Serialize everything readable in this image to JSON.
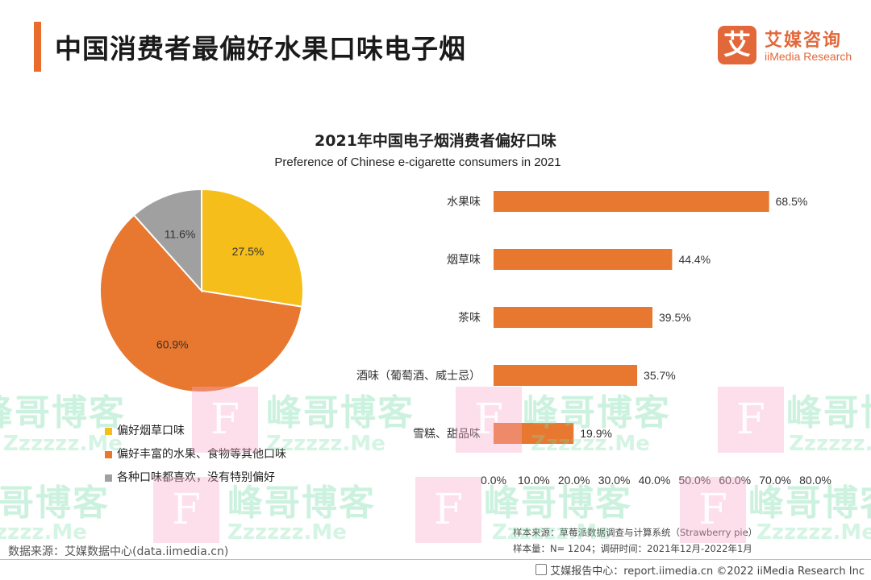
{
  "header": {
    "title": "中国消费者最偏好水果口味电子烟",
    "logo_mark": "艾",
    "logo_cn": "艾媒咨询",
    "logo_en": "iiMedia Research"
  },
  "chart_data": [
    {
      "type": "pie",
      "title": "2021年中国电子烟消费者偏好口味",
      "subtitle": "Preference of Chinese e-cigarette consumers in 2021",
      "slices": [
        {
          "label": "偏好烟草口味",
          "value": 27.5,
          "value_label": "27.5%",
          "color": "#F5BE1A"
        },
        {
          "label": "偏好丰富的水果、食物等其他口味",
          "value": 60.9,
          "value_label": "60.9%",
          "color": "#E8772F"
        },
        {
          "label": "各种口味都喜欢，没有特别偏好",
          "value": 11.6,
          "value_label": "11.6%",
          "color": "#A0A0A0"
        }
      ],
      "legend_position": "bottom"
    },
    {
      "type": "bar",
      "orientation": "horizontal",
      "categories": [
        "水果味",
        "烟草味",
        "茶味",
        "酒味（葡萄酒、威士忌）",
        "雪糕、甜品味"
      ],
      "values": [
        68.5,
        44.4,
        39.5,
        35.7,
        19.9
      ],
      "value_labels": [
        "68.5%",
        "44.4%",
        "39.5%",
        "35.7%",
        "19.9%"
      ],
      "color": "#E8772F",
      "xlim": [
        0,
        80
      ],
      "tick_labels": [
        "0.0%",
        "10.0%",
        "20.0%",
        "30.0%",
        "40.0%",
        "50.0%",
        "60.0%",
        "70.0%",
        "80.0%"
      ],
      "grid": false
    }
  ],
  "footer": {
    "source": "数据来源：艾媒数据中心(data.iimedia.cn)",
    "sample_source": "样本来源：草莓派数据调查与计算系统（Strawberry pie）",
    "sample_size": "样本量：N= 1204；调研时间：2021年12月-2022年1月",
    "credit": "艾媒报告中心：report.iimedia.cn   ©2022  iiMedia Research  Inc"
  },
  "watermark": {
    "cn": "峰哥博客",
    "en": "Zzzzzz.Me",
    "mark": "F"
  }
}
